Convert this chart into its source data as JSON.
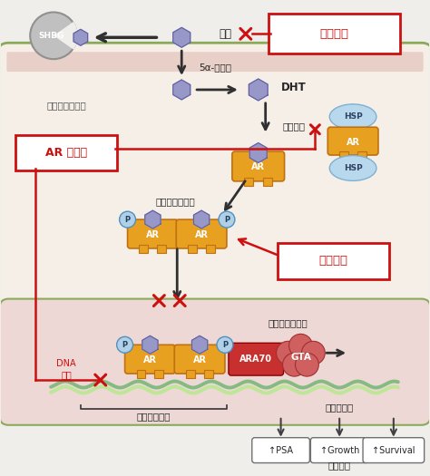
{
  "bg_outer": "#f0eeeb",
  "bg_cell": "#f5efe8",
  "bg_nucleus": "#edd8d5",
  "cell_border": "#8aaa5a",
  "ar_color": "#e8a020",
  "ar_edge": "#c07010",
  "hsp_color": "#b8d8ee",
  "hsp_edge": "#80b0d0",
  "p_color": "#b0d0e8",
  "p_edge": "#5090c0",
  "ara70_color": "#c83030",
  "gta_color": "#d06060",
  "shbg_fill": "#c0c0c0",
  "shbg_edge": "#909090",
  "ligand_color": "#9898c8",
  "ligand_edge": "#6060a0",
  "dna_color1": "#78b878",
  "dna_color2": "#b8e890",
  "arrow_dark": "#303030",
  "red": "#cc1010",
  "text_dark": "#252525",
  "text_labels": {
    "SHBG": "SHBG",
    "testosterone": "稾酮",
    "abiraterone": "阿比特龙",
    "five_alpha": "5α-还原酶",
    "DHT": "DHT",
    "ligand_binding": "配体结合",
    "HSP": "HSP",
    "AR": "AR",
    "dimerization": "二聚化和磷酸化",
    "AR_antagonist": "AR 拮抗剂",
    "docetaxel": "多西他赛",
    "coactivator": "共激活因子招募",
    "DNA_binding": "DNA\n结合",
    "ARA70": "ARA70",
    "GTA": "GTA",
    "androgen_re": "雄激素反应器",
    "target_gene": "靶基因激活",
    "PSA": "↑PSA",
    "Growth": "↑Growth",
    "Survival": "↑Survival",
    "bio_response": "生物反应",
    "cell_label": "雄激素应答细胞",
    "P": "P"
  }
}
